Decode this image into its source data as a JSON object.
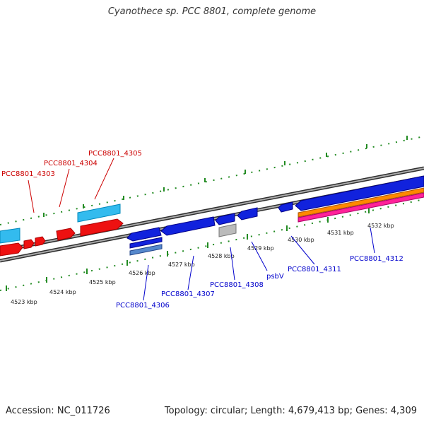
{
  "title": "Cyanothece sp. PCC 8801, complete genome",
  "footer": {
    "accession": "Accession: NC_011726",
    "summary": "Topology: circular; Length: 4,679,413 bp; Genes: 4,309"
  },
  "scale": {
    "ticks": [
      "4523 kbp",
      "4524 kbp",
      "4525 kbp",
      "4526 kbp",
      "4527 kbp",
      "4528 kbp",
      "4529 kbp",
      "4530 kbp",
      "4531 kbp",
      "4532 kbp"
    ]
  },
  "genes": {
    "forward": [
      "PCC8801_4303",
      "PCC8801_4304",
      "PCC8801_4305"
    ],
    "reverse": [
      "PCC8801_4306",
      "PCC8801_4307",
      "PCC8801_4308",
      "psbV",
      "PCC8801_4311",
      "PCC8801_4312"
    ]
  },
  "colors": {
    "forward_label": "#cc0000",
    "reverse_label": "#0000cc",
    "tick": "#228b22"
  }
}
